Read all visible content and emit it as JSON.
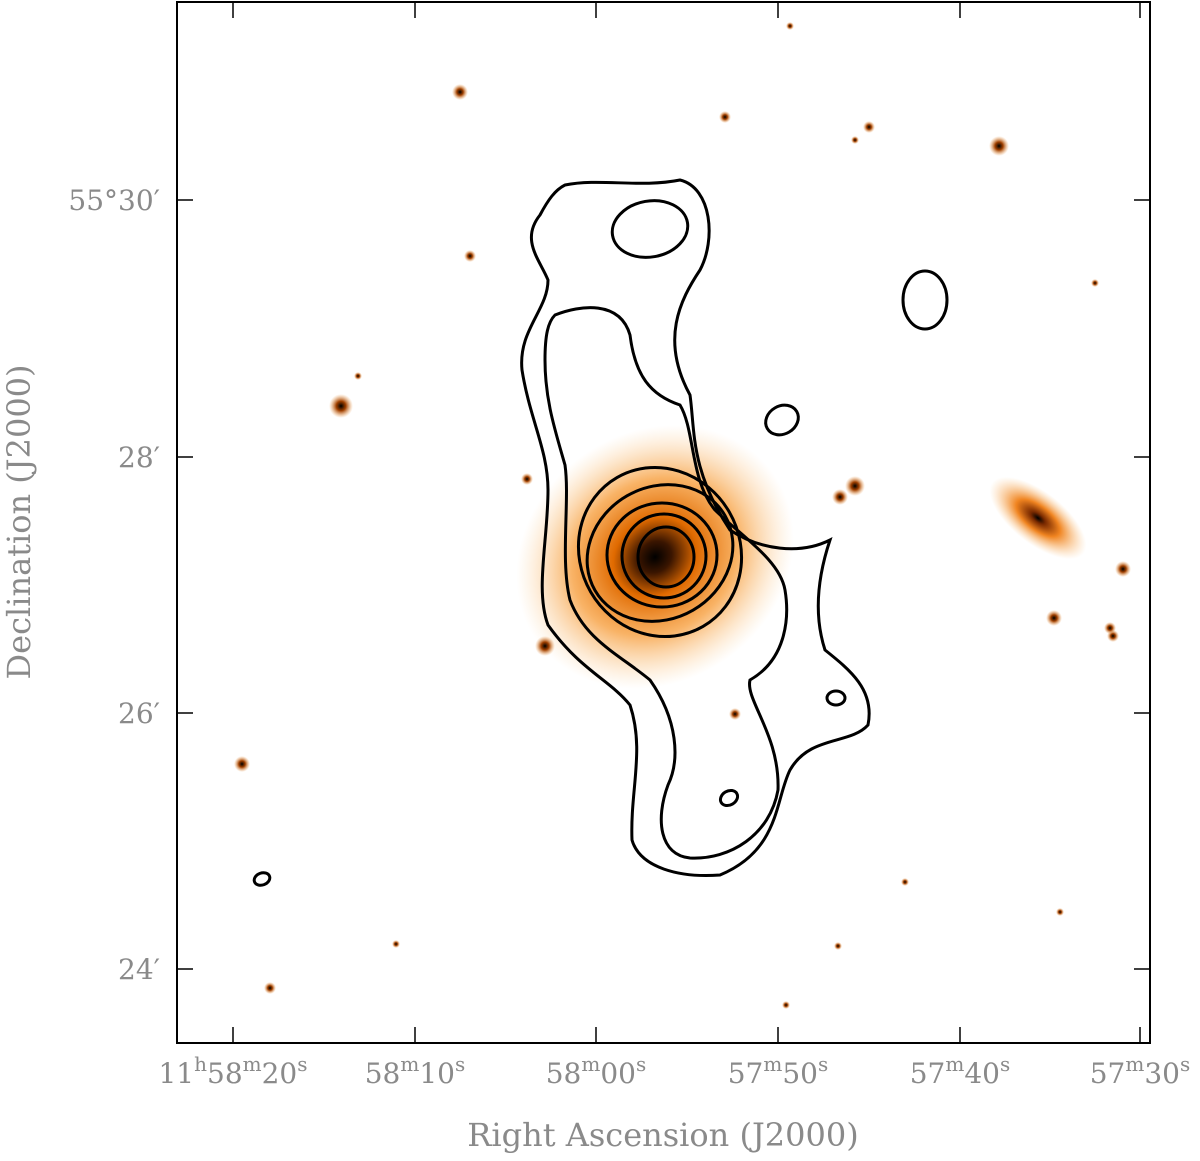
{
  "axes": {
    "x_label": "Right Ascension (J2000)",
    "y_label": "Declination (J2000)",
    "x_ticks": [
      [
        "11",
        "h",
        "58",
        "m",
        "20",
        "s"
      ],
      [
        "58",
        "m",
        "10",
        "s"
      ],
      [
        "58",
        "m",
        "00",
        "s"
      ],
      [
        "57",
        "m",
        "50",
        "s"
      ],
      [
        "57",
        "m",
        "40",
        "s"
      ],
      [
        "57",
        "m",
        "30",
        "s"
      ]
    ],
    "y_ticks": [
      "55°30′",
      "28′",
      "26′",
      "24′"
    ]
  }
}
